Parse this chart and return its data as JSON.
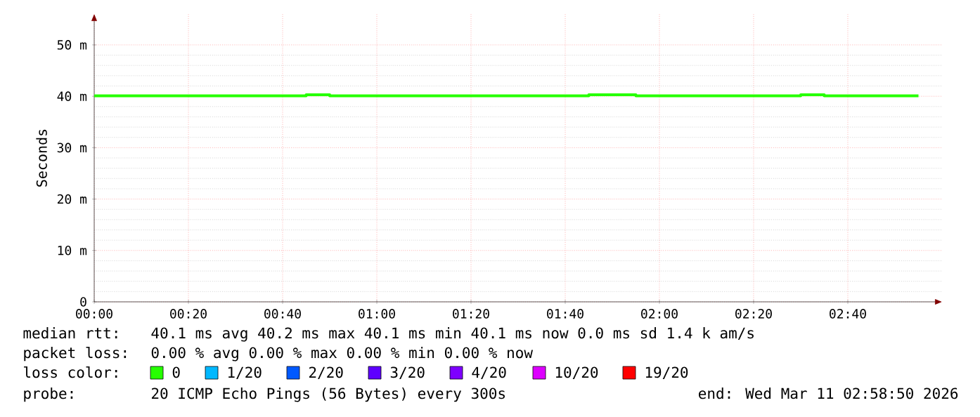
{
  "chart_data": {
    "type": "step",
    "ylabel": "Seconds",
    "x": [
      0,
      0.75,
      0.8333,
      1.75,
      1.9167,
      2.5,
      2.5833,
      2.9167
    ],
    "series": [
      {
        "name": "0",
        "color": "#26ff00",
        "values": [
          40.1,
          40.3,
          40.1,
          40.3,
          40.1,
          40.3,
          40.1,
          40.1
        ]
      },
      {
        "name": "1/20",
        "color": "#00b8ff",
        "values": [
          null,
          null,
          null,
          null,
          null,
          null,
          null,
          null
        ]
      },
      {
        "name": "2/20",
        "color": "#0059ff",
        "values": [
          null,
          null,
          null,
          null,
          null,
          null,
          null,
          null
        ]
      },
      {
        "name": "3/20",
        "color": "#5e00ff",
        "values": [
          null,
          null,
          null,
          null,
          null,
          null,
          null,
          null
        ]
      },
      {
        "name": "4/20",
        "color": "#7e00ff",
        "values": [
          null,
          null,
          null,
          null,
          null,
          null,
          null,
          null
        ]
      },
      {
        "name": "10/20",
        "color": "#dd00ff",
        "values": [
          null,
          null,
          null,
          null,
          null,
          null,
          null,
          null
        ]
      },
      {
        "name": "19/20",
        "color": "#ff0000",
        "values": [
          null,
          null,
          null,
          null,
          null,
          null,
          null,
          null
        ]
      }
    ],
    "legend_title": "loss color:",
    "legend": "bottom",
    "xlim": [
      0,
      3.0
    ],
    "ylim": [
      0,
      56
    ],
    "xticks": [
      {
        "value": 0,
        "label": "00:00"
      },
      {
        "value": 0.33333,
        "label": "00:20"
      },
      {
        "value": 0.66667,
        "label": "00:40"
      },
      {
        "value": 1,
        "label": "01:00"
      },
      {
        "value": 1.33333,
        "label": "01:20"
      },
      {
        "value": 1.66667,
        "label": "01:40"
      },
      {
        "value": 2,
        "label": "02:00"
      },
      {
        "value": 2.33333,
        "label": "02:20"
      },
      {
        "value": 2.66667,
        "label": "02:40"
      }
    ],
    "yticks": [
      0,
      {
        "value": 10,
        "label": "10 m"
      },
      {
        "value": 20,
        "label": "20 m"
      },
      {
        "value": 30,
        "label": "30 m"
      },
      {
        "value": 40,
        "label": "40 m"
      },
      {
        "value": 50,
        "label": "50 m"
      }
    ],
    "grid": true,
    "marker": "none",
    "line_style": "solid",
    "annotations": [
      "median rtt:",
      "40.1 ms avg 40.2 ms max 40.1 ms min 40.1 ms now 0.0 ms sd 1.4 k am/s",
      "packet loss:",
      "0.00 % avg 0.00 % max 0.00 % min 0.00 % now",
      "probe:",
      "20 ICMP Echo Pings (56 Bytes) every 300s",
      "end: Wed Mar 11 02:58:50 2026"
    ]
  }
}
